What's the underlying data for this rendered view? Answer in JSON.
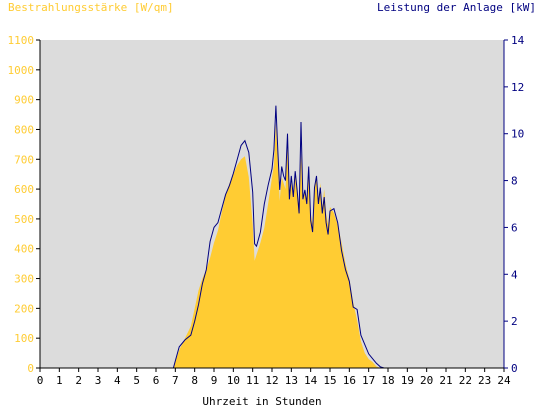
{
  "chart_data": {
    "type": "area",
    "ylabel_left": "Bestrahlungsstärke [W/qm]",
    "ylabel_right": "Leistung der Anlage [kW]",
    "xlabel": "Uhrzeit in Stunden",
    "xlim": [
      0,
      24
    ],
    "ylim_left": [
      0,
      1100
    ],
    "ylim_right": [
      0,
      14
    ],
    "x_ticks": [
      "0",
      "1",
      "2",
      "3",
      "4",
      "5",
      "6",
      "7",
      "8",
      "9",
      "10",
      "11",
      "12",
      "13",
      "14",
      "15",
      "16",
      "17",
      "18",
      "19",
      "20",
      "21",
      "22",
      "23",
      "24"
    ],
    "y_ticks_left": [
      "0",
      "100",
      "200",
      "300",
      "400",
      "500",
      "600",
      "700",
      "800",
      "900",
      "1000",
      "1100"
    ],
    "y_ticks_right": [
      "0",
      "2",
      "4",
      "6",
      "8",
      "10",
      "12",
      "14"
    ],
    "grid": false,
    "colors": {
      "irradiance": "#ffcc33",
      "power": "#000080",
      "plot_background": "#dcdcdc",
      "left_axis_text": "#ffcc33",
      "right_axis_text": "#000080"
    },
    "series": [
      {
        "name": "Bestrahlungsstärke [W/qm]",
        "axis": "left",
        "style": "filled-area",
        "x": [
          0,
          6.9,
          7.0,
          7.2,
          7.5,
          7.8,
          8.0,
          8.2,
          8.4,
          8.6,
          8.8,
          9.0,
          9.2,
          9.4,
          9.6,
          9.8,
          10.0,
          10.2,
          10.4,
          10.6,
          10.8,
          11.0,
          11.1,
          11.2,
          11.4,
          11.6,
          11.8,
          12.0,
          12.1,
          12.2,
          12.3,
          12.4,
          12.5,
          12.6,
          12.7,
          12.8,
          12.9,
          13.0,
          13.1,
          13.2,
          13.3,
          13.4,
          13.5,
          13.6,
          13.7,
          13.8,
          13.9,
          14.0,
          14.1,
          14.2,
          14.3,
          14.4,
          14.5,
          14.6,
          14.7,
          14.8,
          14.9,
          15.0,
          15.2,
          15.4,
          15.6,
          15.8,
          16.0,
          16.2,
          16.4,
          16.6,
          16.8,
          17.0,
          17.2,
          17.4,
          17.6,
          17.8,
          18.0,
          18.2,
          18.5,
          24
        ],
        "y": [
          0,
          0,
          20,
          60,
          100,
          140,
          200,
          260,
          300,
          330,
          370,
          420,
          460,
          520,
          580,
          620,
          650,
          680,
          700,
          710,
          640,
          480,
          360,
          380,
          420,
          470,
          550,
          640,
          680,
          820,
          700,
          560,
          640,
          620,
          600,
          760,
          560,
          620,
          580,
          650,
          600,
          540,
          720,
          560,
          600,
          560,
          660,
          520,
          480,
          600,
          640,
          560,
          620,
          540,
          600,
          520,
          480,
          540,
          520,
          480,
          420,
          350,
          300,
          220,
          160,
          90,
          50,
          30,
          20,
          5,
          0,
          0,
          0,
          0,
          0,
          0
        ]
      },
      {
        "name": "Leistung der Anlage [kW]",
        "axis": "right",
        "style": "line",
        "x": [
          0,
          6.9,
          7.0,
          7.2,
          7.5,
          7.8,
          8.0,
          8.2,
          8.4,
          8.6,
          8.8,
          9.0,
          9.2,
          9.4,
          9.6,
          9.8,
          10.0,
          10.2,
          10.4,
          10.6,
          10.8,
          11.0,
          11.1,
          11.2,
          11.4,
          11.6,
          11.8,
          12.0,
          12.1,
          12.2,
          12.3,
          12.4,
          12.5,
          12.6,
          12.7,
          12.8,
          12.9,
          13.0,
          13.1,
          13.2,
          13.3,
          13.4,
          13.5,
          13.6,
          13.7,
          13.8,
          13.9,
          14.0,
          14.1,
          14.2,
          14.3,
          14.4,
          14.5,
          14.6,
          14.7,
          14.8,
          14.9,
          15.0,
          15.2,
          15.4,
          15.6,
          15.8,
          16.0,
          16.2,
          16.4,
          16.6,
          16.8,
          17.0,
          17.2,
          17.4,
          17.6,
          17.8,
          18.0,
          18.2,
          18.5,
          24
        ],
        "y": [
          0,
          0,
          0.3,
          0.9,
          1.2,
          1.4,
          2.0,
          2.7,
          3.6,
          4.2,
          5.4,
          6.0,
          6.2,
          6.8,
          7.4,
          7.8,
          8.3,
          8.9,
          9.5,
          9.7,
          9.2,
          7.5,
          5.3,
          5.2,
          5.8,
          7.0,
          7.8,
          8.5,
          9.3,
          11.2,
          9.3,
          7.6,
          8.6,
          8.2,
          8.0,
          10.0,
          7.2,
          8.2,
          7.3,
          8.4,
          7.6,
          6.6,
          10.5,
          7.2,
          7.6,
          7.0,
          8.6,
          6.3,
          5.8,
          7.7,
          8.2,
          7.0,
          7.7,
          6.6,
          7.3,
          6.2,
          5.7,
          6.7,
          6.8,
          6.2,
          5.0,
          4.2,
          3.7,
          2.6,
          2.5,
          1.4,
          1.0,
          0.6,
          0.4,
          0.2,
          0.05,
          0,
          0,
          0,
          0,
          0
        ]
      }
    ]
  }
}
